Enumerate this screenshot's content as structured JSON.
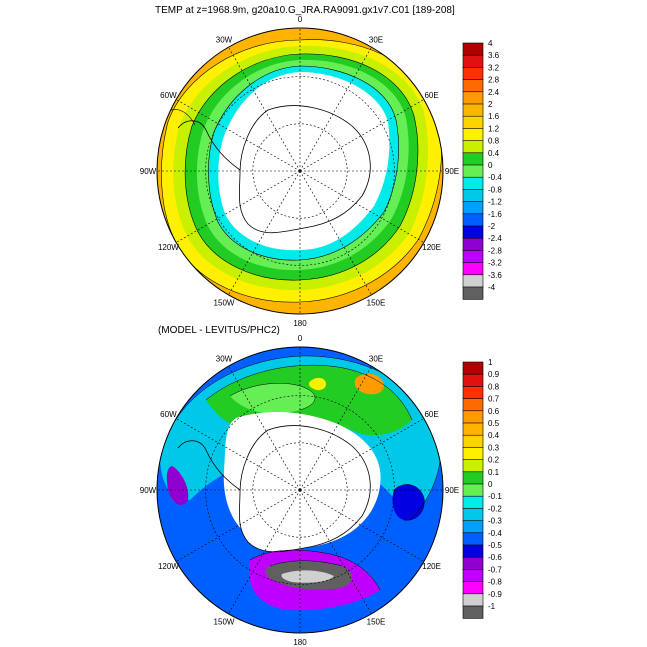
{
  "panels": [
    {
      "id": "top",
      "title": "TEMP at z=1968.9m, g20a10.G_JRA.RA9091.gx1v7.C01 [189-208]",
      "longitude_labels": [
        "0",
        "30E",
        "60E",
        "90E",
        "120E",
        "150E",
        "180",
        "150W",
        "120W",
        "90W",
        "60W",
        "30W"
      ],
      "colorbar": {
        "labels": [
          "4",
          "3.6",
          "3.2",
          "2.8",
          "2.4",
          "2",
          "1.6",
          "1.2",
          "0.8",
          "0.4",
          "0",
          "-0.4",
          "-0.8",
          "-1.2",
          "-1.6",
          "-2",
          "-2.4",
          "-2.8",
          "-3.2",
          "-3.6",
          "-4"
        ],
        "colors": [
          "#b00000",
          "#e01010",
          "#ff3000",
          "#ff6a00",
          "#ff9a00",
          "#ffb400",
          "#ffd300",
          "#fff000",
          "#c8f000",
          "#22cc22",
          "#66ee55",
          "#00eaea",
          "#00c8e8",
          "#00a0ff",
          "#0060ff",
          "#0000e0",
          "#9000d0",
          "#c000ff",
          "#ff00ff",
          "#d0d0d0",
          "#606060"
        ]
      }
    },
    {
      "id": "bottom",
      "title": "(MODEL - LEVITUS/PHC2)",
      "longitude_labels": [
        "0",
        "30E",
        "60E",
        "90E",
        "120E",
        "150E",
        "180",
        "150W",
        "120W",
        "90W",
        "60W",
        "30W"
      ],
      "colorbar": {
        "labels": [
          "1",
          "0.9",
          "0.8",
          "0.7",
          "0.6",
          "0.5",
          "0.4",
          "0.3",
          "0.2",
          "0.1",
          "0",
          "-0.1",
          "-0.2",
          "-0.3",
          "-0.4",
          "-0.5",
          "-0.6",
          "-0.7",
          "-0.8",
          "-0.9",
          "-1"
        ],
        "colors": [
          "#b00000",
          "#e01010",
          "#ff3000",
          "#ff6a00",
          "#ff9a00",
          "#ffb400",
          "#ffd300",
          "#fff000",
          "#c8f000",
          "#22cc22",
          "#66ee55",
          "#00eaea",
          "#00c8e8",
          "#00a0ff",
          "#0060ff",
          "#0000e0",
          "#9000d0",
          "#c000ff",
          "#ff00ff",
          "#d0d0d0",
          "#606060"
        ]
      }
    }
  ]
}
